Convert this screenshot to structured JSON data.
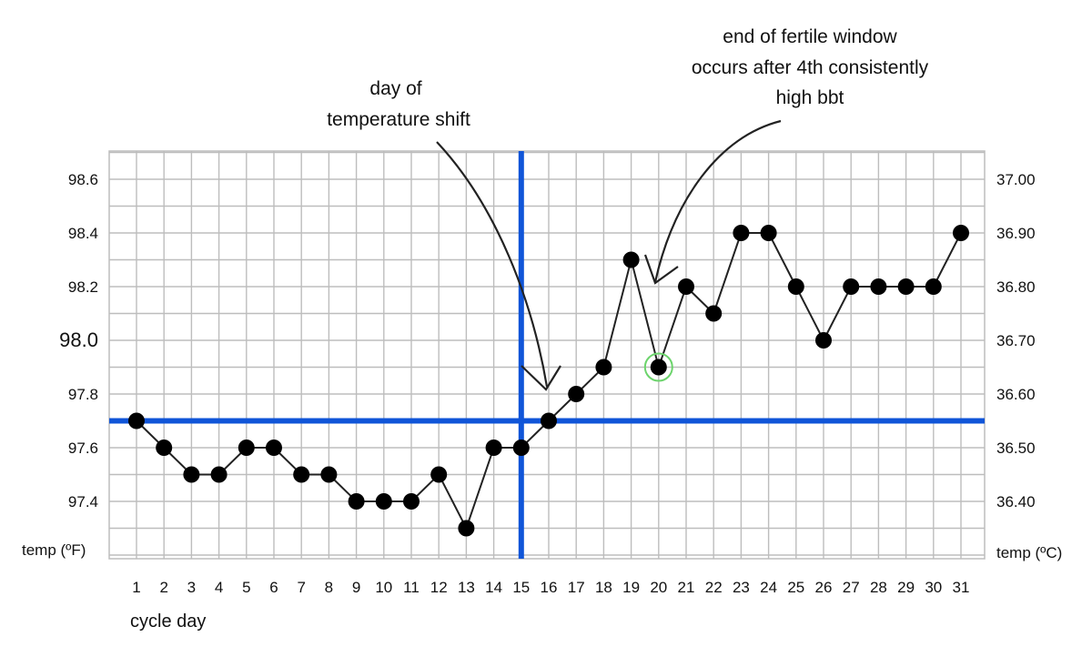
{
  "chart_data": {
    "type": "line",
    "x_label": "cycle day",
    "y_left_label": "temp (ºF)",
    "y_right_label": "temp (ºC)",
    "y_left_ticks": [
      "98.6",
      "98.4",
      "98.2",
      "98.0",
      "97.8",
      "97.6",
      "97.4"
    ],
    "y_left_tick_values": [
      98.6,
      98.4,
      98.2,
      98.0,
      97.8,
      97.6,
      97.4
    ],
    "y_right_ticks": [
      "37.00",
      "36.90",
      "36.80",
      "36.70",
      "36.60",
      "36.50",
      "36.40"
    ],
    "ylim_f": [
      97.2,
      98.7
    ],
    "x": [
      1,
      2,
      3,
      4,
      5,
      6,
      7,
      8,
      9,
      10,
      11,
      12,
      13,
      14,
      15,
      16,
      17,
      18,
      19,
      20,
      21,
      22,
      23,
      24,
      25,
      26,
      27,
      28,
      29,
      30,
      31
    ],
    "series": [
      {
        "values": [
          97.7,
          97.6,
          97.5,
          97.5,
          97.6,
          97.6,
          97.5,
          97.5,
          97.4,
          97.4,
          97.4,
          97.5,
          97.3,
          97.6,
          97.6,
          97.7,
          97.8,
          97.9,
          98.3,
          97.9,
          98.2,
          98.1,
          98.4,
          98.4,
          98.2,
          98.0,
          98.2,
          98.2,
          98.2,
          98.2,
          98.4
        ]
      }
    ],
    "reference_lines": {
      "temperature_shift_day": 15,
      "coverline_temp_f": 97.7
    },
    "highlighted_day": 20,
    "annotations": [
      {
        "lines": [
          "day of",
          "temperature shift"
        ]
      },
      {
        "lines": [
          "end of fertile window",
          "occurs after 4th consistently",
          "high bbt"
        ]
      }
    ],
    "colors": {
      "reference": "#1055d8",
      "highlight": "#6cd46c",
      "line": "#222222",
      "grid": "#bdbdbd",
      "marker": "#000000"
    },
    "grid": true,
    "legend": "none"
  }
}
